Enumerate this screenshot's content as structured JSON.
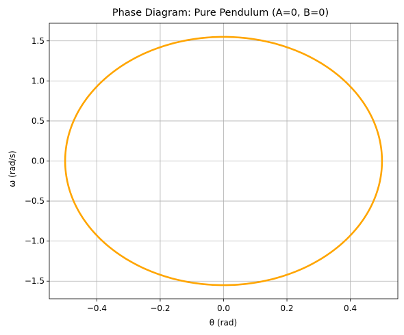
{
  "chart_data": {
    "type": "line",
    "title": "Phase Diagram: Pure Pendulum (A=0, B=0)",
    "xlabel": "θ (rad)",
    "ylabel": "ω (rad/s)",
    "xlim": [
      -0.55,
      0.55
    ],
    "ylim": [
      -1.72,
      1.72
    ],
    "xticks": [
      -0.4,
      -0.2,
      0.0,
      0.2,
      0.4
    ],
    "yticks": [
      -1.5,
      -1.0,
      -0.5,
      0.0,
      0.5,
      1.0,
      1.5
    ],
    "grid": true,
    "series": [
      {
        "type": "ellipse-trajectory",
        "theta_amplitude": 0.5,
        "omega_amplitude": 1.55,
        "color": "#FFA500"
      }
    ]
  }
}
